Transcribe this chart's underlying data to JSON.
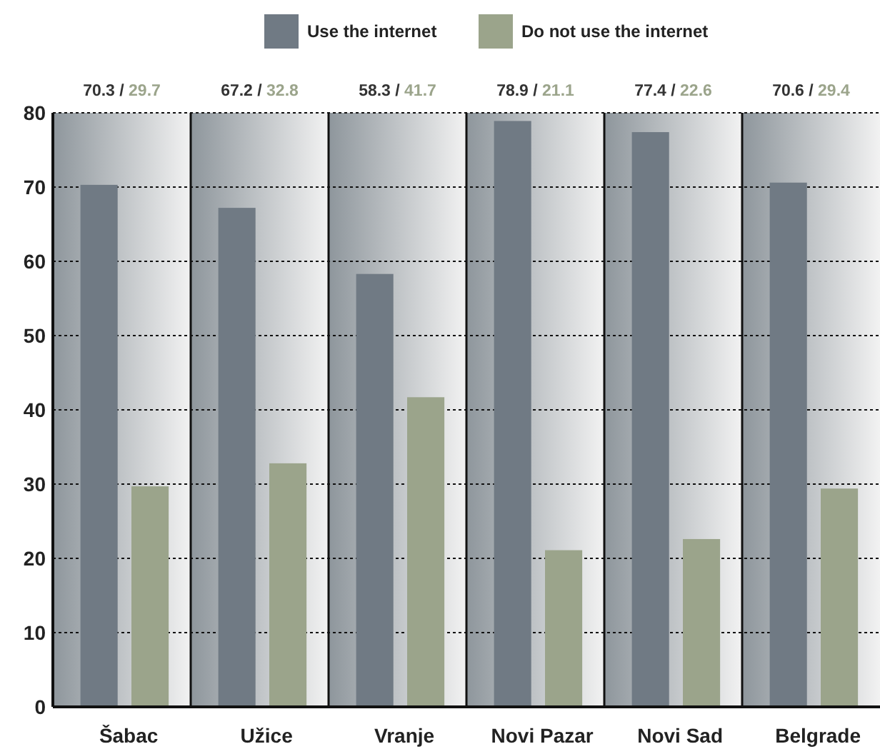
{
  "chart_data": {
    "type": "bar",
    "categories": [
      "Šabac",
      "Užice",
      "Vranje",
      "Novi Pazar",
      "Novi Sad",
      "Belgrade"
    ],
    "series": [
      {
        "name": "Use the internet",
        "color": "#707a84",
        "values": [
          70.3,
          67.2,
          58.3,
          78.9,
          77.4,
          70.6
        ]
      },
      {
        "name": "Do not use the internet",
        "color": "#9ba48b",
        "values": [
          29.7,
          32.8,
          41.7,
          21.1,
          22.6,
          29.4
        ]
      }
    ],
    "ylim": [
      0,
      80
    ],
    "yticks": [
      0,
      10,
      20,
      30,
      40,
      50,
      60,
      70,
      80
    ],
    "grid": "y",
    "legend": "top",
    "annotations": [
      "70.3 / 29.7",
      "67.2 / 32.8",
      "58.3 / 41.7",
      "78.9 / 21.1",
      "77.4 / 22.6",
      "70.6 / 29.4"
    ]
  }
}
